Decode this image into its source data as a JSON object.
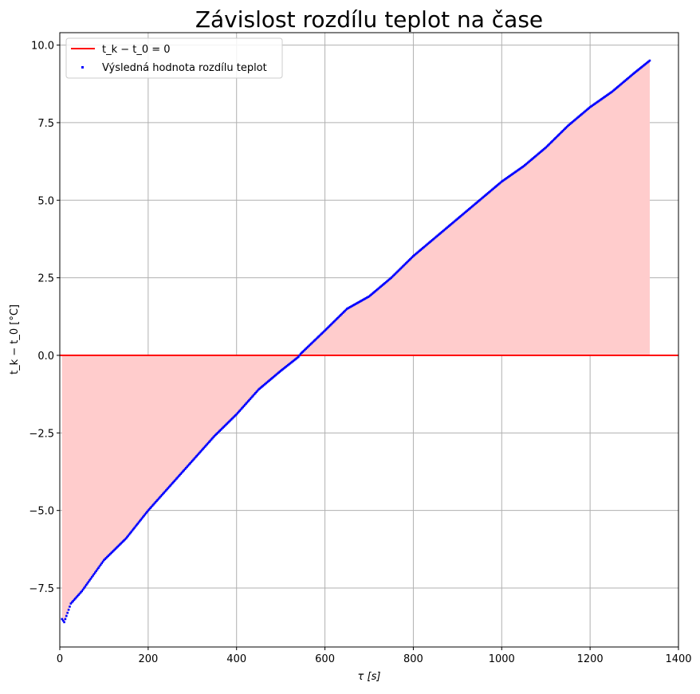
{
  "chart_data": {
    "type": "scatter",
    "title": "Závislost rozdílu teplot na čase",
    "xlabel": "τ [s]",
    "ylabel": "t_k − t_0 [°C]",
    "xlim": [
      0,
      1400
    ],
    "ylim": [
      -9.4,
      10.4
    ],
    "xticks": [
      0,
      200,
      400,
      600,
      800,
      1000,
      1200,
      1400
    ],
    "xtick_labels": [
      "0",
      "200",
      "400",
      "600",
      "800",
      "1000",
      "1200",
      "1400"
    ],
    "yticks": [
      -7.5,
      -5.0,
      -2.5,
      0.0,
      2.5,
      5.0,
      7.5,
      10.0
    ],
    "ytick_labels": [
      "−7.5",
      "−5.0",
      "−2.5",
      "0.0",
      "2.5",
      "5.0",
      "7.5",
      "10.0"
    ],
    "grid": true,
    "legend_position": "top-left",
    "colors": {
      "reference_line": "#ff0000",
      "points": "#0000ff",
      "fill": "#ffcccc",
      "grid": "#b0b0b0"
    },
    "series": [
      {
        "name": "t_k − t_0 = 0",
        "kind": "hline",
        "y": 0
      },
      {
        "name": "Výsledná hodnota rozdílu teplot",
        "kind": "scatter",
        "x": [
          5,
          10,
          25,
          50,
          75,
          100,
          150,
          200,
          250,
          300,
          350,
          400,
          450,
          500,
          540,
          545,
          600,
          650,
          700,
          750,
          800,
          850,
          900,
          950,
          1000,
          1050,
          1100,
          1150,
          1200,
          1250,
          1300,
          1335
        ],
        "y": [
          -8.5,
          -8.6,
          -8.0,
          -7.6,
          -7.1,
          -6.6,
          -5.9,
          -5.0,
          -4.2,
          -3.4,
          -2.6,
          -1.9,
          -1.1,
          -0.5,
          -0.05,
          0.05,
          0.8,
          1.5,
          1.9,
          2.5,
          3.2,
          3.8,
          4.4,
          5.0,
          5.6,
          6.1,
          6.7,
          7.4,
          8.0,
          8.5,
          9.1,
          9.5
        ]
      }
    ],
    "fill_between": {
      "from_series": 1,
      "to": 0
    }
  }
}
